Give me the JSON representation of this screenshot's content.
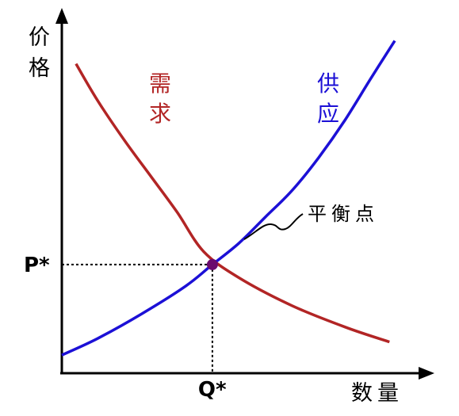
{
  "chart_data": {
    "type": "line",
    "xlabel": "数量",
    "ylabel": "价格",
    "series": [
      {
        "name": "需求",
        "color": "#B22525",
        "points": [
          [
            0.08,
            9.4
          ],
          [
            0.2,
            8.3
          ],
          [
            0.35,
            7.1
          ],
          [
            0.5,
            6.0
          ],
          [
            0.65,
            4.9
          ],
          [
            0.8,
            3.7
          ],
          [
            1.0,
            2.9
          ],
          [
            1.3,
            2.05
          ],
          [
            1.6,
            1.4
          ],
          [
            1.85,
            0.95
          ]
        ]
      },
      {
        "name": "供应",
        "color": "#1C10D6",
        "points": [
          [
            0.0,
            0.55
          ],
          [
            0.2,
            1.05
          ],
          [
            0.45,
            1.8
          ],
          [
            0.7,
            2.65
          ],
          [
            0.85,
            3.3
          ],
          [
            1.0,
            3.95
          ],
          [
            1.15,
            4.75
          ],
          [
            1.3,
            5.55
          ],
          [
            1.45,
            6.55
          ],
          [
            1.6,
            7.7
          ],
          [
            1.75,
            9.0
          ],
          [
            1.88,
            10.1
          ]
        ]
      }
    ],
    "equilibrium": {
      "label": "平衡点",
      "x_label": "Q*",
      "y_label": "P*",
      "x": 0.85,
      "y": 3.3,
      "color": "#6B0A6E"
    },
    "xlim": [
      0,
      2.05
    ],
    "ylim": [
      0,
      11
    ],
    "grid": false
  }
}
